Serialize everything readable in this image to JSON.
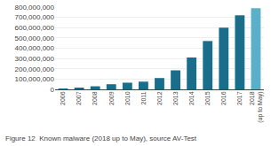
{
  "chart_data": {
    "type": "bar",
    "categories": [
      "2006",
      "2007",
      "2008",
      "2009",
      "2010",
      "2011",
      "2012",
      "2013",
      "2014",
      "2015",
      "2016",
      "2017",
      "2018\n(up to May)"
    ],
    "values": [
      5000000,
      15000000,
      30000000,
      50000000,
      65000000,
      75000000,
      110000000,
      185000000,
      310000000,
      470000000,
      600000000,
      720000000,
      790000000
    ],
    "colors": [
      "#1a6e8c",
      "#1a6e8c",
      "#1a6e8c",
      "#1a6e8c",
      "#1a6e8c",
      "#1a6e8c",
      "#1a6e8c",
      "#1a6e8c",
      "#1a6e8c",
      "#1a6e8c",
      "#1a6e8c",
      "#1a6e8c",
      "#5ab0c8"
    ],
    "ylim": [
      0,
      800000000
    ],
    "yticks": [
      0,
      {
        "value": 100000000,
        "label": "100,000,000"
      },
      {
        "value": 200000000,
        "label": "200,000,000"
      },
      {
        "value": 300000000,
        "label": "300,000,000"
      },
      {
        "value": 400000000,
        "label": "400,000,000"
      },
      {
        "value": 500000000,
        "label": "500,000,000"
      },
      {
        "value": 600000000,
        "label": "600,000,000"
      },
      {
        "value": 700000000,
        "label": "700,000,000"
      },
      {
        "value": 800000000,
        "label": "800,000,000"
      }
    ],
    "grid": true,
    "annotations": [
      "Figure 12  Known malware (2018 up to May), source AV-Test"
    ]
  }
}
